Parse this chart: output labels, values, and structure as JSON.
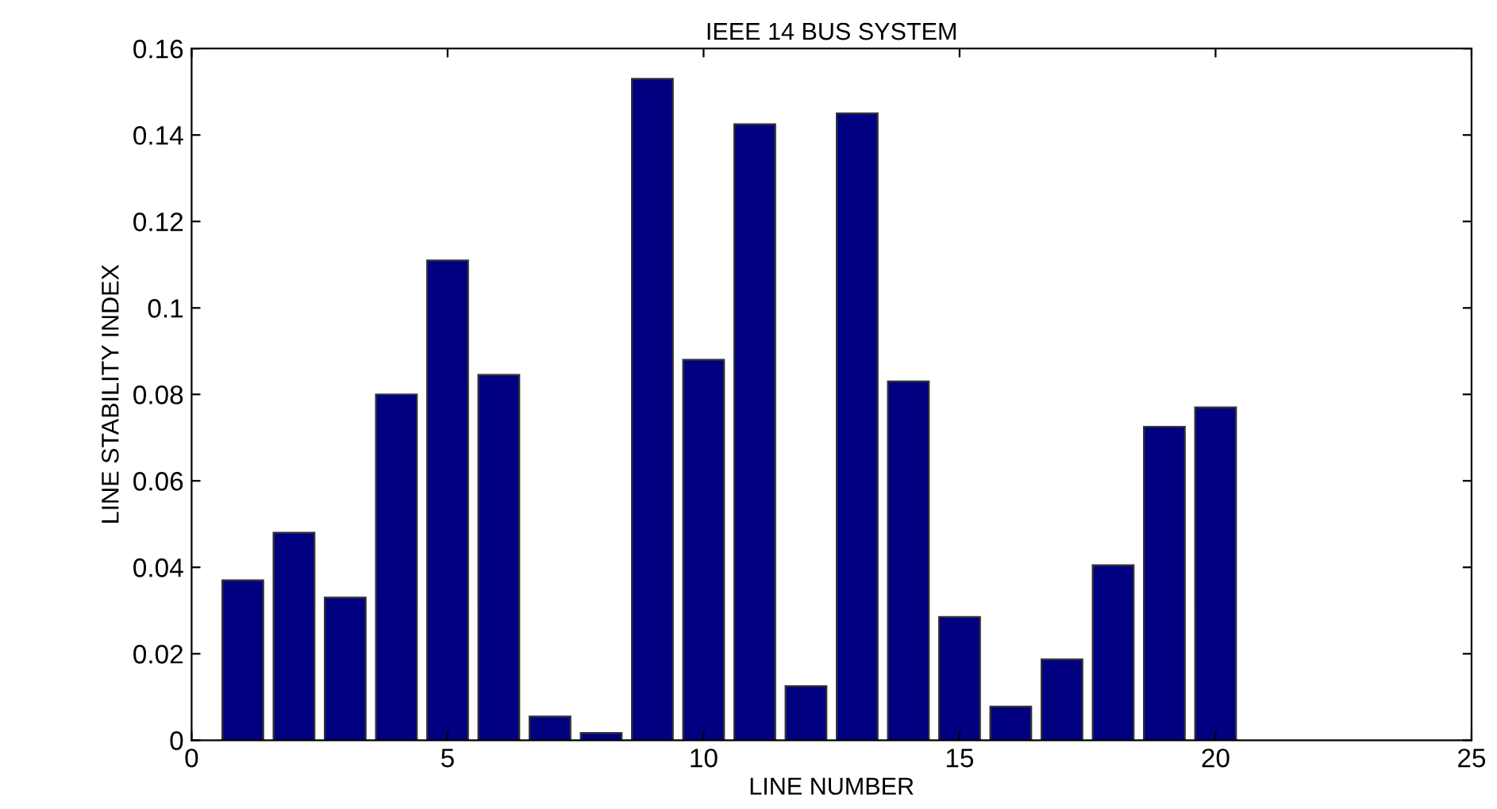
{
  "chart_data": {
    "type": "bar",
    "title": "IEEE 14 BUS SYSTEM",
    "xlabel": "LINE NUMBER",
    "ylabel": "LINE STABILITY INDEX",
    "x": [
      1,
      2,
      3,
      4,
      5,
      6,
      7,
      8,
      9,
      10,
      11,
      12,
      13,
      14,
      15,
      16,
      17,
      18,
      19,
      20
    ],
    "values": [
      0.037,
      0.048,
      0.033,
      0.08,
      0.111,
      0.0845,
      0.0055,
      0.0017,
      0.153,
      0.088,
      0.1425,
      0.0125,
      0.145,
      0.083,
      0.0285,
      0.0078,
      0.0187,
      0.0405,
      0.0725,
      0.077
    ],
    "color": "#000080",
    "xlim": [
      0,
      25
    ],
    "xticks": [
      0,
      5,
      10,
      15,
      20,
      25
    ],
    "ylim": [
      0,
      0.16
    ],
    "yticks": [
      0,
      0.02,
      0.04,
      0.06,
      0.08,
      {
        "value": 0.1,
        "label": "0.1"
      },
      0.12,
      0.14,
      0.16
    ],
    "grid": false
  }
}
